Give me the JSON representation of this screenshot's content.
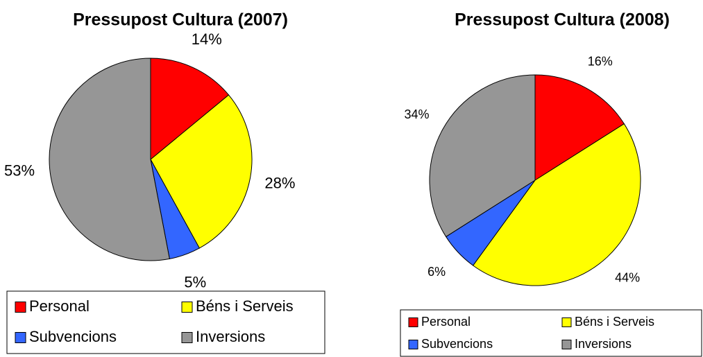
{
  "chart_data": [
    {
      "type": "pie",
      "title": "Pressupost Cultura (2007)",
      "categories": [
        "Personal",
        "Béns i Serveis",
        "Subvencions",
        "Inversions"
      ],
      "values": [
        14,
        28,
        5,
        53
      ],
      "value_labels": [
        "14%",
        "28%",
        "5%",
        "53%"
      ],
      "colors": [
        "#ff0000",
        "#ffff00",
        "#3366ff",
        "#969696"
      ],
      "legend": "bottom"
    },
    {
      "type": "pie",
      "title": "Pressupost Cultura (2008)",
      "categories": [
        "Personal",
        "Béns i Serveis",
        "Subvencions",
        "Inversions"
      ],
      "values": [
        16,
        44,
        6,
        34
      ],
      "value_labels": [
        "16%",
        "44%",
        "6%",
        "34%"
      ],
      "colors": [
        "#ff0000",
        "#ffff00",
        "#3366ff",
        "#969696"
      ],
      "legend": "bottom"
    }
  ]
}
